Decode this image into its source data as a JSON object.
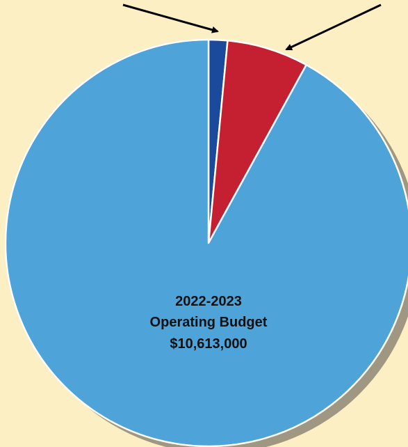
{
  "background_color": "#fdefc4",
  "chart_data": {
    "type": "pie",
    "start_angle_deg": 0,
    "direction": "clockwise",
    "slices": [
      {
        "value": 1.5,
        "color": "#1b4a9c"
      },
      {
        "value": 6.5,
        "color": "#c52032"
      },
      {
        "value": 92.0,
        "color": "#4ea3d8"
      }
    ],
    "center_label": {
      "line1": "2022-2023",
      "line2": "Operating Budget",
      "line3": "$10,613,000"
    },
    "callout_arrows": [
      {
        "points_to_slice": 0
      },
      {
        "points_to_slice": 1
      }
    ],
    "slice_border_color": "#ffffff",
    "shadow_color": "#8f8778"
  }
}
